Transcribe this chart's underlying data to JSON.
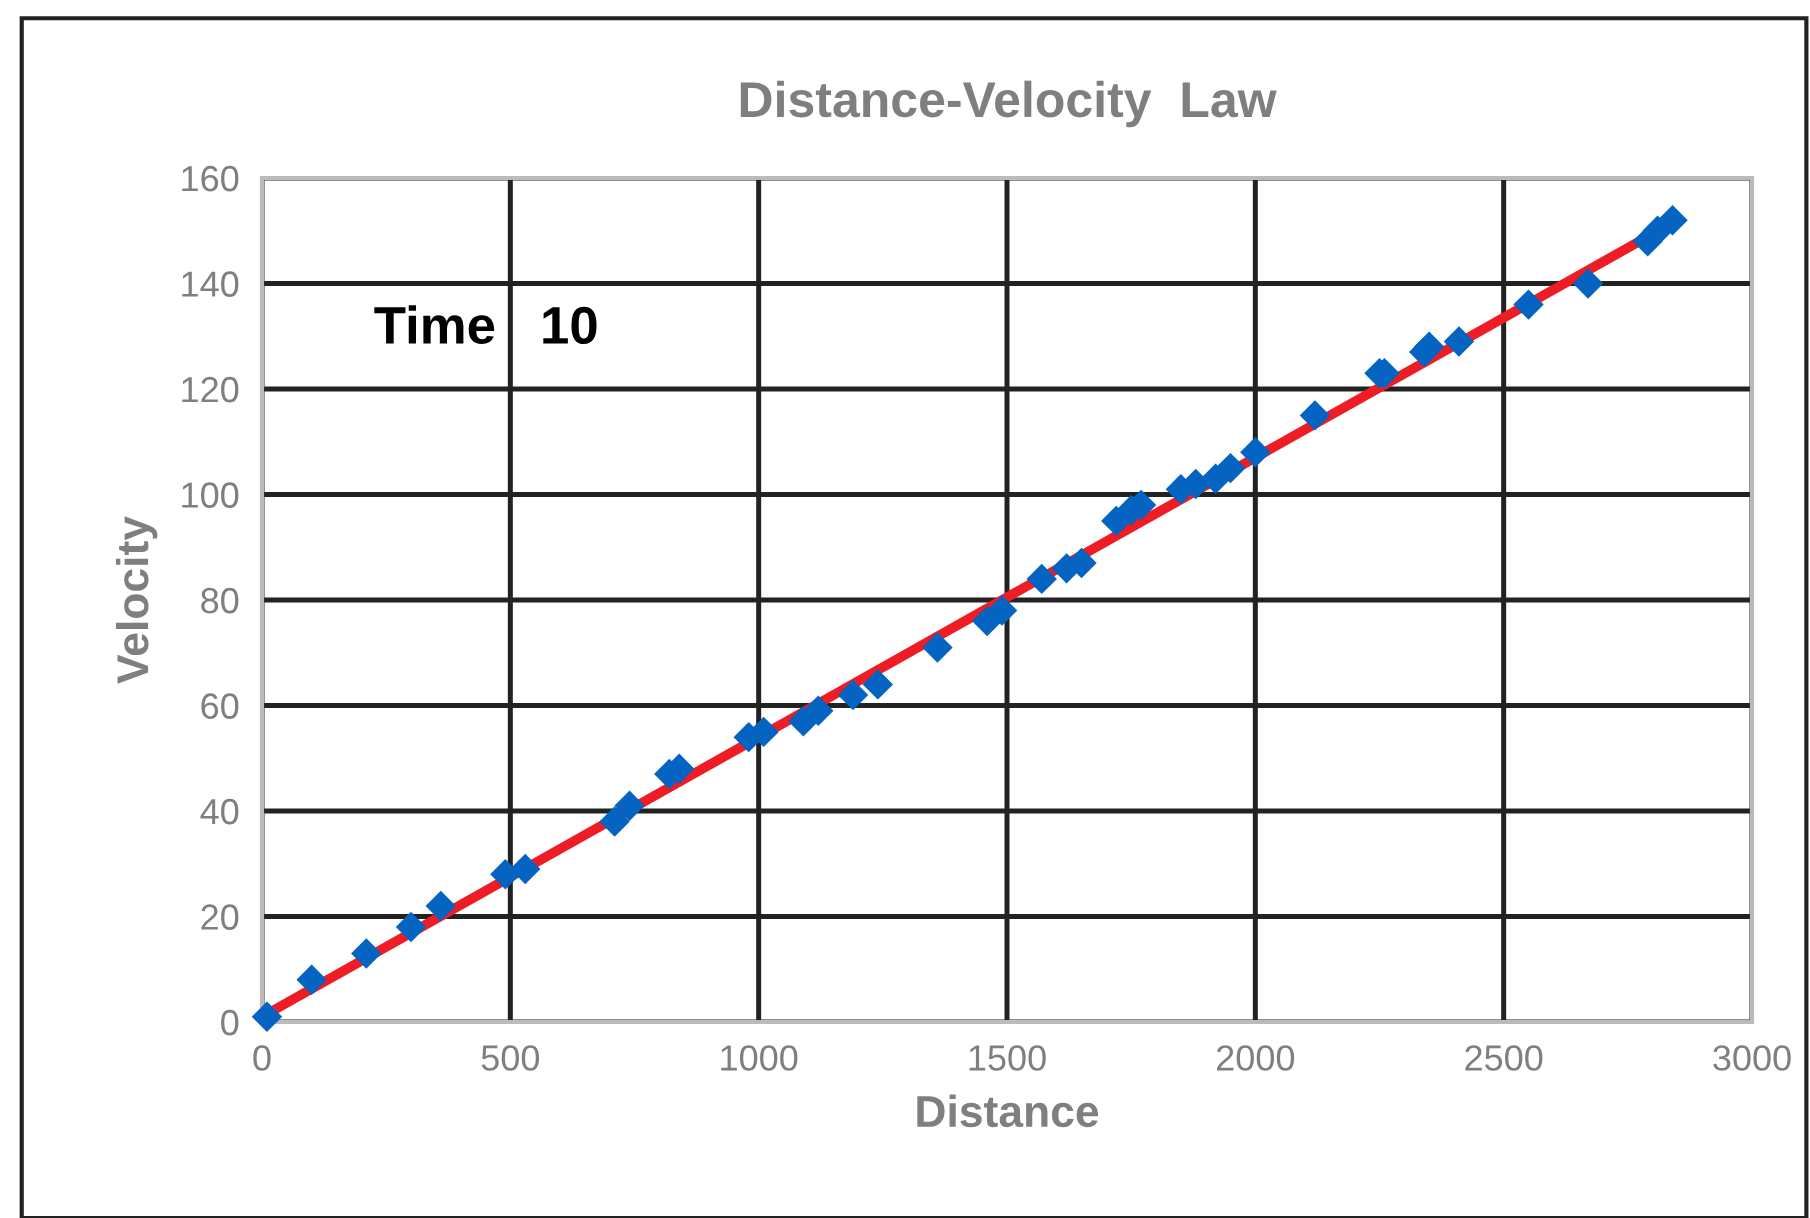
{
  "chart_data": {
    "type": "scatter",
    "title": "Distance-Velocity  Law",
    "xlabel": "Distance",
    "ylabel": "Velocity",
    "annotations": [
      "Time   10"
    ],
    "xlim": [
      0,
      3000
    ],
    "xticks": [
      0,
      500,
      1000,
      1500,
      2000,
      2500,
      3000
    ],
    "ylim": [
      0,
      160
    ],
    "yticks": [
      0,
      20,
      40,
      60,
      80,
      100,
      120,
      140,
      160
    ],
    "grid": true,
    "series": [
      {
        "marker": "diamond",
        "color": "#0563c1",
        "x": [
          10,
          100,
          210,
          300,
          360,
          490,
          530,
          710,
          740,
          820,
          840,
          980,
          1010,
          1090,
          1120,
          1190,
          1240,
          1360,
          1460,
          1490,
          1570,
          1620,
          1650,
          1720,
          1750,
          1770,
          1850,
          1880,
          1920,
          1950,
          2000,
          2120,
          2250,
          2260,
          2340,
          2350,
          2410,
          2550,
          2670,
          2790,
          2810,
          2840
        ],
        "values": [
          1,
          8,
          13,
          18,
          22,
          28,
          29,
          38,
          41,
          47,
          48,
          54,
          55,
          57,
          59,
          62,
          64,
          71,
          76,
          78,
          84,
          86,
          87,
          95,
          97,
          98,
          101,
          102,
          103,
          105,
          108,
          115,
          123,
          123,
          127,
          128,
          129,
          136,
          140,
          148,
          150,
          152
        ]
      },
      {
        "type": "line",
        "color": "#ee1c25",
        "x": [
          0,
          2830
        ],
        "values": [
          1,
          151
        ]
      }
    ]
  }
}
